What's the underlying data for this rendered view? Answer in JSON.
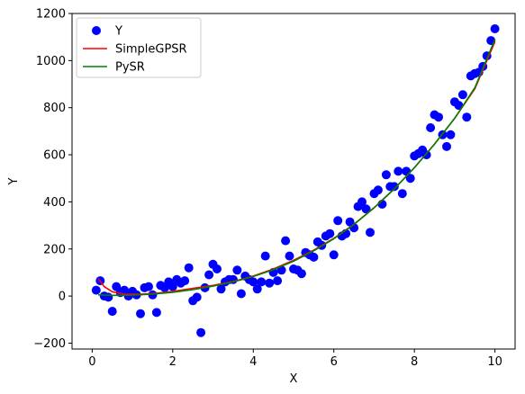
{
  "chart_data": {
    "type": "scatter",
    "title": "",
    "xlabel": "X",
    "ylabel": "Y",
    "xlim": [
      -0.5,
      10.5
    ],
    "ylim": [
      -225,
      1200
    ],
    "xticks": [
      0,
      2,
      4,
      6,
      8,
      10
    ],
    "yticks": [
      -200,
      0,
      200,
      400,
      600,
      800,
      1000,
      1200
    ],
    "grid": false,
    "legend_position": "top-left",
    "series": [
      {
        "name": "Y",
        "kind": "scatter",
        "color": "#0000ff",
        "points": [
          [
            0.1,
            25
          ],
          [
            0.2,
            65
          ],
          [
            0.3,
            0
          ],
          [
            0.4,
            -5
          ],
          [
            0.5,
            -65
          ],
          [
            0.6,
            40
          ],
          [
            0.7,
            15
          ],
          [
            0.8,
            25
          ],
          [
            0.9,
            0
          ],
          [
            1.0,
            20
          ],
          [
            1.1,
            5
          ],
          [
            1.2,
            -75
          ],
          [
            1.3,
            35
          ],
          [
            1.4,
            40
          ],
          [
            1.5,
            5
          ],
          [
            1.6,
            -70
          ],
          [
            1.7,
            45
          ],
          [
            1.8,
            35
          ],
          [
            1.9,
            60
          ],
          [
            2.0,
            40
          ],
          [
            2.1,
            70
          ],
          [
            2.2,
            55
          ],
          [
            2.3,
            65
          ],
          [
            2.4,
            120
          ],
          [
            2.5,
            -20
          ],
          [
            2.6,
            -5
          ],
          [
            2.7,
            -155
          ],
          [
            2.8,
            35
          ],
          [
            2.9,
            90
          ],
          [
            3.0,
            135
          ],
          [
            3.1,
            115
          ],
          [
            3.2,
            30
          ],
          [
            3.3,
            60
          ],
          [
            3.4,
            70
          ],
          [
            3.5,
            70
          ],
          [
            3.6,
            110
          ],
          [
            3.7,
            10
          ],
          [
            3.8,
            85
          ],
          [
            3.9,
            70
          ],
          [
            4.0,
            60
          ],
          [
            4.1,
            30
          ],
          [
            4.2,
            60
          ],
          [
            4.3,
            170
          ],
          [
            4.4,
            55
          ],
          [
            4.5,
            100
          ],
          [
            4.6,
            65
          ],
          [
            4.7,
            110
          ],
          [
            4.8,
            235
          ],
          [
            4.9,
            170
          ],
          [
            5.0,
            115
          ],
          [
            5.1,
            110
          ],
          [
            5.2,
            95
          ],
          [
            5.3,
            185
          ],
          [
            5.4,
            175
          ],
          [
            5.5,
            165
          ],
          [
            5.6,
            230
          ],
          [
            5.7,
            215
          ],
          [
            5.8,
            255
          ],
          [
            5.9,
            265
          ],
          [
            6.0,
            175
          ],
          [
            6.1,
            320
          ],
          [
            6.2,
            255
          ],
          [
            6.3,
            265
          ],
          [
            6.4,
            315
          ],
          [
            6.5,
            290
          ],
          [
            6.6,
            380
          ],
          [
            6.7,
            400
          ],
          [
            6.8,
            370
          ],
          [
            6.9,
            270
          ],
          [
            7.0,
            435
          ],
          [
            7.1,
            450
          ],
          [
            7.2,
            390
          ],
          [
            7.3,
            515
          ],
          [
            7.4,
            465
          ],
          [
            7.5,
            465
          ],
          [
            7.6,
            530
          ],
          [
            7.7,
            435
          ],
          [
            7.8,
            530
          ],
          [
            7.9,
            500
          ],
          [
            8.0,
            595
          ],
          [
            8.1,
            605
          ],
          [
            8.2,
            620
          ],
          [
            8.3,
            600
          ],
          [
            8.4,
            715
          ],
          [
            8.5,
            770
          ],
          [
            8.6,
            760
          ],
          [
            8.7,
            685
          ],
          [
            8.8,
            635
          ],
          [
            8.9,
            685
          ],
          [
            9.0,
            825
          ],
          [
            9.1,
            810
          ],
          [
            9.2,
            855
          ],
          [
            9.3,
            760
          ],
          [
            9.4,
            935
          ],
          [
            9.5,
            945
          ],
          [
            9.6,
            950
          ],
          [
            9.7,
            975
          ],
          [
            9.8,
            1020
          ],
          [
            9.9,
            1085
          ],
          [
            10.0,
            1135
          ]
        ]
      },
      {
        "name": "SimpleGPSR",
        "kind": "line",
        "color": "#ff0000",
        "points": [
          [
            0.15,
            75
          ],
          [
            0.3,
            40
          ],
          [
            0.5,
            18
          ],
          [
            0.8,
            8
          ],
          [
            1.2,
            8
          ],
          [
            1.6,
            12
          ],
          [
            2.0,
            20
          ],
          [
            2.5,
            33
          ],
          [
            3.0,
            45
          ],
          [
            3.5,
            62
          ],
          [
            4.0,
            85
          ],
          [
            4.5,
            115
          ],
          [
            5.0,
            152
          ],
          [
            5.5,
            195
          ],
          [
            6.0,
            245
          ],
          [
            6.5,
            305
          ],
          [
            7.0,
            375
          ],
          [
            7.5,
            455
          ],
          [
            8.0,
            545
          ],
          [
            8.5,
            645
          ],
          [
            9.0,
            755
          ],
          [
            9.5,
            880
          ],
          [
            10.0,
            1080
          ]
        ]
      },
      {
        "name": "PySR",
        "kind": "line",
        "color": "#008000",
        "points": [
          [
            0.15,
            5
          ],
          [
            0.5,
            3
          ],
          [
            1.0,
            4
          ],
          [
            1.5,
            8
          ],
          [
            2.0,
            16
          ],
          [
            2.5,
            27
          ],
          [
            3.0,
            42
          ],
          [
            3.5,
            60
          ],
          [
            4.0,
            83
          ],
          [
            4.5,
            112
          ],
          [
            5.0,
            148
          ],
          [
            5.5,
            192
          ],
          [
            6.0,
            243
          ],
          [
            6.5,
            304
          ],
          [
            7.0,
            375
          ],
          [
            7.5,
            455
          ],
          [
            8.0,
            545
          ],
          [
            8.5,
            645
          ],
          [
            9.0,
            755
          ],
          [
            9.5,
            885
          ],
          [
            10.0,
            1090
          ]
        ]
      }
    ]
  }
}
